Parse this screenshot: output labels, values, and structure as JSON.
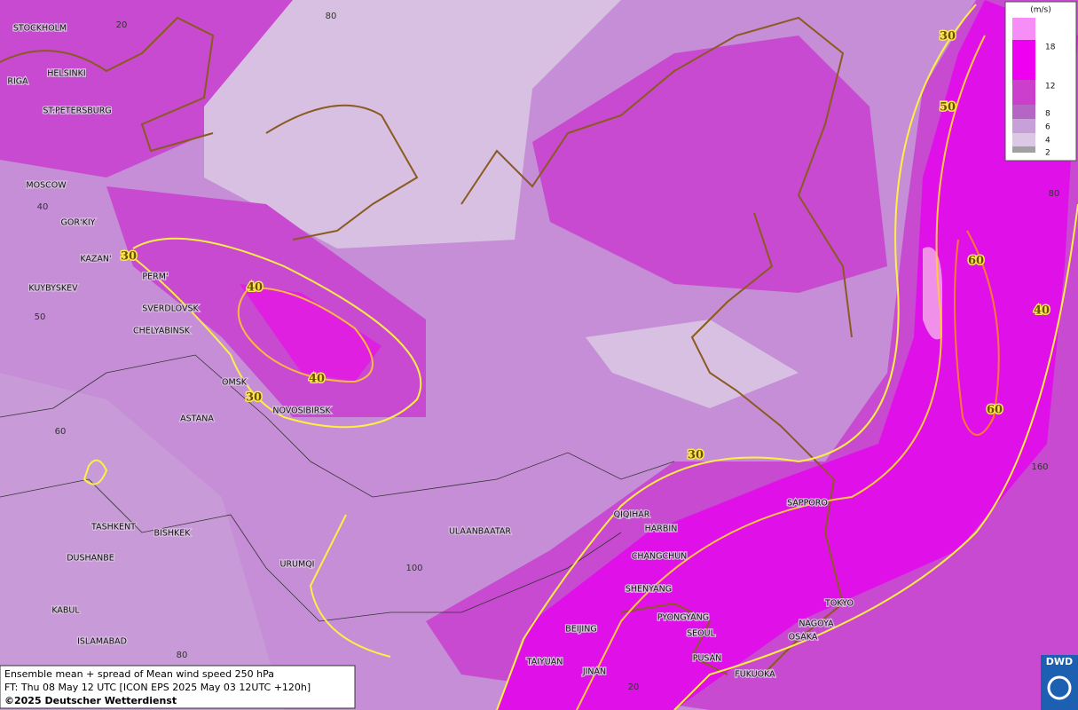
{
  "map": {
    "cities": [
      "STOCKHOLM",
      "HELSINKI",
      "RIGA",
      "ST.PETERSBURG",
      "MOSCOW",
      "GOR'KIY",
      "KAZAN'",
      "PERM'",
      "KUYBYSKEV",
      "SVERDLOVSK",
      "CHELYABINSK",
      "OMSK",
      "NOVOSIBIRSK",
      "ASTANA",
      "TASHKENT",
      "BISHKEK",
      "DUSHANBE",
      "URUMQI",
      "ULAANBAATAR",
      "QIQIHAR",
      "HARBIN",
      "CHANGCHUN",
      "SHENYANG",
      "PYONGYANG",
      "BEIJING",
      "SEOUL",
      "TAIYUAN",
      "JINAN",
      "PUSAN",
      "FUKUOKA",
      "TOKYO",
      "NAGOYA",
      "OSAKA",
      "SAPPORO",
      "KABUL",
      "ISLAMABAD"
    ],
    "contour_labels": [
      30,
      40,
      40,
      30,
      30,
      30,
      50,
      60,
      60,
      40
    ],
    "graticule_labels": [
      20,
      80,
      40,
      50,
      60,
      100,
      80,
      20,
      160,
      80
    ],
    "legend": {
      "unit": "(m/s)",
      "levels": [
        18,
        12,
        8,
        6,
        4,
        2
      ]
    },
    "footer": {
      "line1": "Ensemble mean + spread of Mean wind speed 250 hPa",
      "line2": "FT: Thu 08 May 12 UTC [ICON EPS 2025 May 03 12UTC +120h]",
      "line3": "©2025 Deutscher Wetterdienst"
    },
    "logo": "DWD"
  }
}
